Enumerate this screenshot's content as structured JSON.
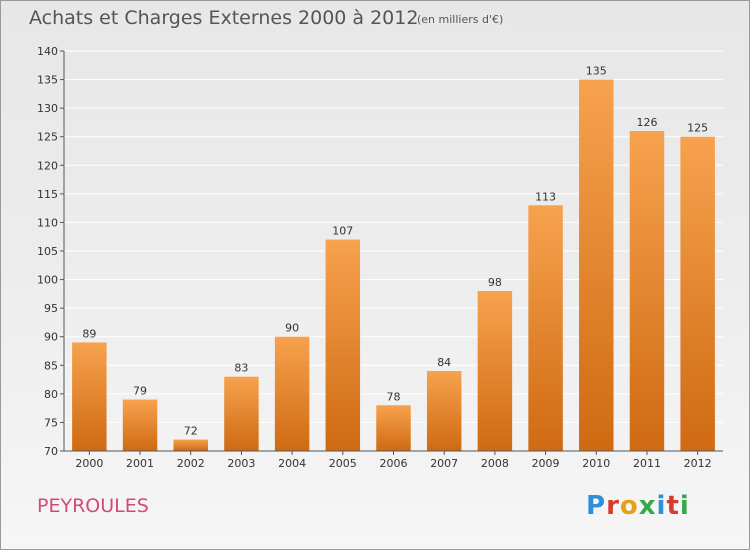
{
  "header": {
    "title": "Achats et Charges Externes 2000 à 2012",
    "subtitle": "(en milliers d'€)"
  },
  "footer": {
    "commune": "PEYROULES",
    "brand": "Proxiti",
    "brand_letters": [
      "P",
      "r",
      "o",
      "x",
      "i",
      "t",
      "i"
    ]
  },
  "colors": {
    "bar_top": "#f7a24e",
    "bar_bottom": "#cf6a12",
    "axis": "#555555",
    "grid": "#ffffff",
    "commune": "#d04c74"
  },
  "chart_data": {
    "type": "bar",
    "title": "Achats et Charges Externes 2000 à 2012",
    "subtitle": "(en milliers d'€)",
    "xlabel": "",
    "ylabel": "",
    "categories": [
      "2000",
      "2001",
      "2002",
      "2003",
      "2004",
      "2005",
      "2006",
      "2007",
      "2008",
      "2009",
      "2010",
      "2011",
      "2012"
    ],
    "values": [
      89,
      79,
      72,
      83,
      90,
      107,
      78,
      84,
      98,
      113,
      135,
      126,
      125
    ],
    "ylim": [
      70,
      140
    ],
    "yticks": [
      70,
      75,
      80,
      85,
      90,
      95,
      100,
      105,
      110,
      115,
      120,
      125,
      130,
      135,
      140
    ],
    "grid": true,
    "data_labels": true
  }
}
